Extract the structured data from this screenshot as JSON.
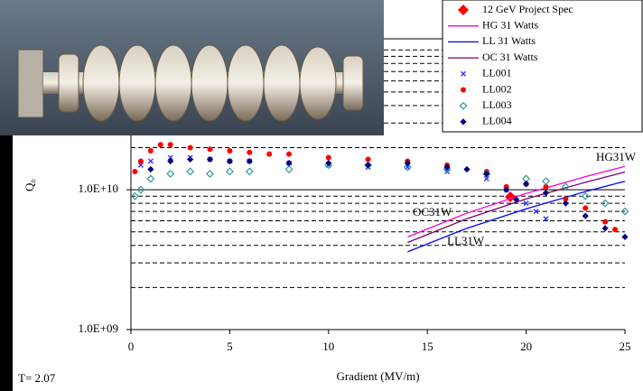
{
  "chart_data": {
    "type": "scatter",
    "x_label": "Gradient (MV/m)",
    "y_label": "Q₀",
    "note": "T= 2.07",
    "xlim": [
      0,
      25
    ],
    "xticks": [
      0,
      5,
      10,
      15,
      20,
      25
    ],
    "ylim": [
      1000000000.0,
      120000000000.0
    ],
    "log_y": true,
    "yticks": [
      {
        "value": 1000000000.0,
        "label": "1.0E+09"
      },
      {
        "value": 10000000000.0,
        "label": "1.0E+10"
      }
    ],
    "minor_gridlines": [
      2000000000.0,
      3000000000.0,
      4000000000.0,
      5000000000.0,
      6000000000.0,
      7000000000.0,
      8000000000.0,
      9000000000.0,
      20000000000.0,
      30000000000.0,
      40000000000.0,
      50000000000.0,
      60000000000.0,
      70000000000.0,
      80000000000.0,
      90000000000.0,
      100000000000.0
    ],
    "series": [
      {
        "name": "12 GeV Project Spec",
        "color": "#ff0000",
        "marker": "big-diamond",
        "x": [
          19.2
        ],
        "values": [
          8900000000.0
        ]
      },
      {
        "name": "HG 31 Watts",
        "color": "#ff00cc",
        "marker": "line",
        "x": [
          14,
          17,
          20,
          23,
          25
        ],
        "values": [
          4600000000.0,
          6800000000.0,
          9400000000.0,
          12400000000.0,
          14700000000.0
        ]
      },
      {
        "name": "LL 31 Watts",
        "color": "#0000ff",
        "marker": "line",
        "x": [
          14,
          17,
          20,
          23,
          25
        ],
        "values": [
          3600000000.0,
          5300000000.0,
          7300000000.0,
          9700000000.0,
          11500000000.0
        ]
      },
      {
        "name": "OC 31 Watts",
        "color": "#800060",
        "marker": "line",
        "x": [
          14,
          17,
          20,
          23,
          25
        ],
        "values": [
          4200000000.0,
          6200000000.0,
          8600000000.0,
          11300000000.0,
          13400000000.0
        ]
      },
      {
        "name": "LL001",
        "color": "#3333ff",
        "marker": "x",
        "x": [
          0.5,
          1,
          2,
          3,
          4,
          5,
          6,
          8,
          10,
          12,
          14,
          16,
          18,
          19,
          20,
          20.5,
          21
        ],
        "values": [
          15000000000.0,
          16000000000.0,
          17000000000.0,
          17000000000.0,
          16500000000.0,
          16000000000.0,
          16000000000.0,
          15500000000.0,
          15000000000.0,
          14500000000.0,
          14500000000.0,
          13500000000.0,
          12000000000.0,
          10000000000.0,
          8000000000.0,
          7000000000.0,
          6200000000.0
        ]
      },
      {
        "name": "LL002",
        "color": "#ff0000",
        "marker": "circle",
        "x": [
          0.2,
          0.5,
          1,
          1.5,
          2,
          3,
          4,
          5,
          6,
          7,
          8,
          10,
          12,
          14,
          16,
          18,
          19,
          20,
          21,
          22,
          23,
          24,
          24.5
        ],
        "values": [
          13500000000.0,
          16000000000.0,
          19000000000.0,
          21000000000.0,
          21000000000.0,
          20000000000.0,
          19500000000.0,
          19000000000.0,
          18500000000.0,
          18000000000.0,
          18000000000.0,
          17000000000.0,
          16500000000.0,
          16000000000.0,
          15000000000.0,
          13500000000.0,
          10500000000.0,
          11000000000.0,
          10500000000.0,
          8600000000.0,
          7400000000.0,
          5900000000.0,
          5200000000.0
        ]
      },
      {
        "name": "LL003",
        "color": "#339999",
        "marker": "open-diamond",
        "x": [
          0.2,
          0.5,
          1,
          2,
          3,
          4,
          5,
          6,
          8,
          10,
          12,
          14,
          16,
          18,
          20,
          21,
          22,
          23,
          24,
          25
        ],
        "values": [
          9000000000.0,
          10000000000.0,
          12000000000.0,
          13000000000.0,
          13500000000.0,
          13000000000.0,
          13500000000.0,
          13500000000.0,
          14000000000.0,
          15000000000.0,
          15000000000.0,
          14500000000.0,
          14000000000.0,
          13000000000.0,
          12000000000.0,
          11500000000.0,
          10500000000.0,
          9000000000.0,
          8000000000.0,
          7000000000.0
        ]
      },
      {
        "name": "LL004",
        "color": "#000080",
        "marker": "diamond",
        "x": [
          1,
          2,
          3,
          4,
          5,
          6,
          8,
          10,
          12,
          14,
          16,
          17,
          18,
          19,
          19.5,
          20,
          21,
          22,
          23,
          24,
          25
        ],
        "values": [
          14000000000.0,
          16000000000.0,
          16500000000.0,
          16500000000.0,
          16000000000.0,
          16000000000.0,
          15500000000.0,
          15500000000.0,
          15000000000.0,
          15500000000.0,
          14500000000.0,
          14000000000.0,
          13000000000.0,
          10000000000.0,
          8500000000.0,
          11000000000.0,
          9500000000.0,
          8000000000.0,
          6500000000.0,
          5300000000.0,
          4600000000.0
        ]
      }
    ],
    "annotations": [
      {
        "text": "HG31W",
        "color": "#ff00cc"
      },
      {
        "text": "OC31W",
        "color": "#993366"
      },
      {
        "text": "LL31W",
        "color": "#0000ff"
      }
    ]
  }
}
